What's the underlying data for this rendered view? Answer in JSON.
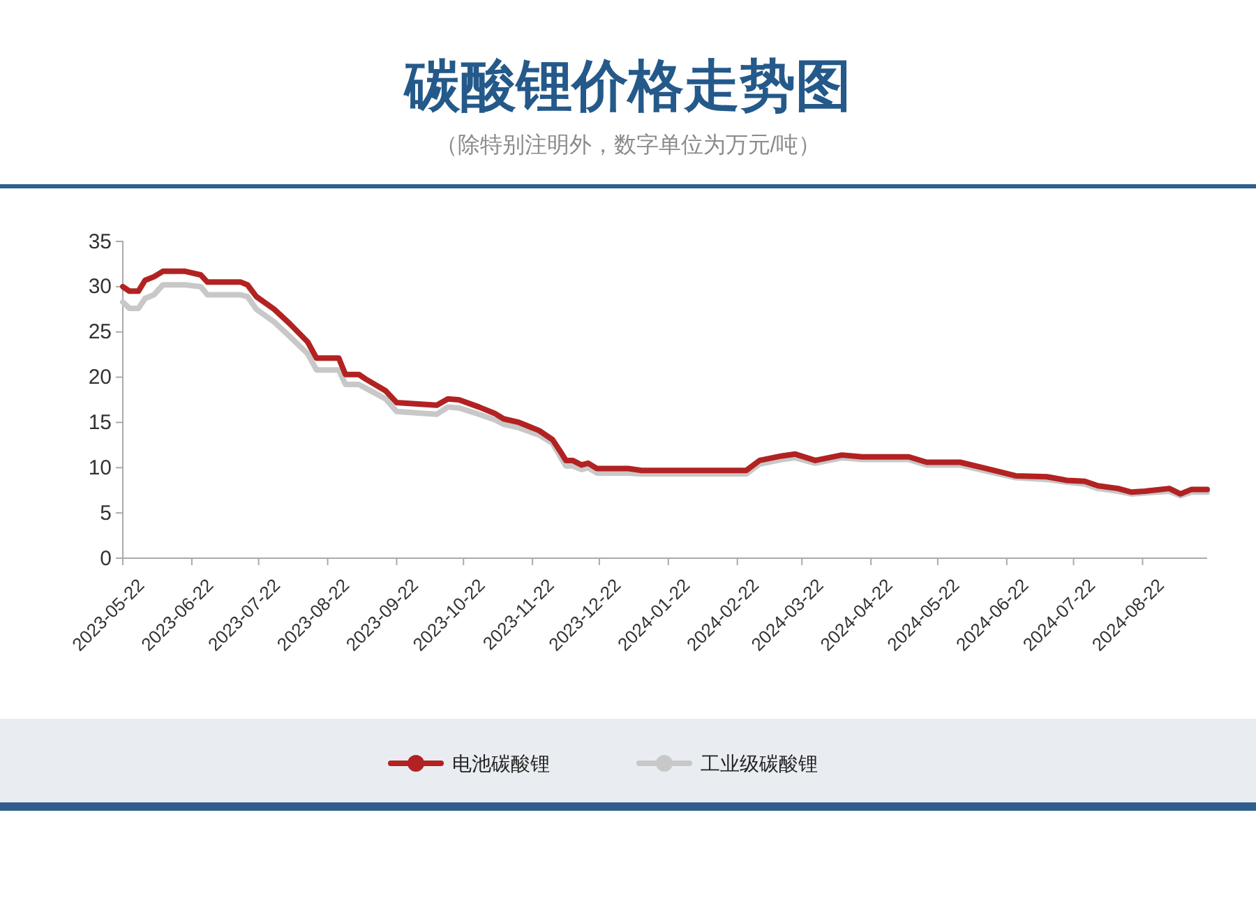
{
  "chart_data": {
    "type": "line",
    "title": "碳酸锂价格走势图",
    "subtitle": "（除特别注明外，数字单位为万元/吨）",
    "x": [
      "2023-05-22",
      "2023-05-25",
      "2023-05-29",
      "2023-06-01",
      "2023-06-05",
      "2023-06-09",
      "2023-06-19",
      "2023-06-26",
      "2023-06-29",
      "2023-07-14",
      "2023-07-17",
      "2023-07-21",
      "2023-07-29",
      "2023-08-05",
      "2023-08-13",
      "2023-08-17",
      "2023-08-27",
      "2023-08-30",
      "2023-09-05",
      "2023-09-08",
      "2023-09-17",
      "2023-09-22",
      "2023-10-10",
      "2023-10-15",
      "2023-10-20",
      "2023-10-29",
      "2023-11-05",
      "2023-11-09",
      "2023-11-16",
      "2023-11-25",
      "2023-12-01",
      "2023-12-05",
      "2023-12-07",
      "2023-12-10",
      "2023-12-14",
      "2023-12-17",
      "2023-12-21",
      "2024-01-04",
      "2024-01-10",
      "2024-02-26",
      "2024-03-03",
      "2024-03-13",
      "2024-03-19",
      "2024-03-28",
      "2024-04-09",
      "2024-04-18",
      "2024-05-09",
      "2024-05-17",
      "2024-06-01",
      "2024-06-13",
      "2024-06-26",
      "2024-07-10",
      "2024-07-19",
      "2024-07-27",
      "2024-08-02",
      "2024-08-11",
      "2024-08-17",
      "2024-08-23",
      "2024-09-03",
      "2024-09-08",
      "2024-09-13",
      "2024-09-20"
    ],
    "series": [
      {
        "name": "电池碳酸锂",
        "color": "#b22222",
        "values": [
          30.0,
          29.5,
          29.5,
          30.7,
          31.1,
          31.7,
          31.7,
          31.3,
          30.5,
          30.5,
          30.2,
          28.9,
          27.5,
          25.9,
          23.9,
          22.1,
          22.1,
          20.3,
          20.3,
          19.8,
          18.5,
          17.2,
          16.9,
          17.6,
          17.5,
          16.7,
          16.0,
          15.4,
          15.0,
          14.1,
          13.1,
          11.6,
          10.8,
          10.8,
          10.3,
          10.5,
          9.9,
          9.9,
          9.7,
          9.7,
          10.8,
          11.3,
          11.5,
          10.8,
          11.4,
          11.2,
          11.2,
          10.6,
          10.6,
          9.9,
          9.1,
          9.0,
          8.6,
          8.5,
          8.0,
          7.7,
          7.3,
          7.4,
          7.7,
          7.1,
          7.6,
          7.6
        ]
      },
      {
        "name": "工业级碳酸锂",
        "color": "#c8c8c8",
        "values": [
          28.3,
          27.6,
          27.6,
          28.7,
          29.1,
          30.2,
          30.2,
          30.0,
          29.1,
          29.1,
          28.9,
          27.5,
          26.1,
          24.5,
          22.6,
          20.8,
          20.8,
          19.2,
          19.2,
          18.8,
          17.6,
          16.2,
          15.9,
          16.7,
          16.6,
          15.9,
          15.3,
          14.8,
          14.4,
          13.6,
          12.7,
          11.0,
          10.2,
          10.2,
          9.8,
          10.0,
          9.4,
          9.4,
          9.3,
          9.3,
          10.4,
          10.9,
          11.1,
          10.5,
          11.1,
          10.9,
          10.9,
          10.3,
          10.3,
          9.6,
          8.9,
          8.7,
          8.4,
          8.2,
          7.7,
          7.4,
          7.1,
          7.2,
          7.4,
          6.9,
          7.3,
          7.3
        ]
      }
    ],
    "xlim": [
      "2023-05-22",
      "2024-09-20"
    ],
    "xticks": [
      "2023-05-22",
      "2023-06-22",
      "2023-07-22",
      "2023-08-22",
      "2023-09-22",
      "2023-10-22",
      "2023-11-22",
      "2023-12-22",
      "2024-01-22",
      "2024-02-22",
      "2024-03-22",
      "2024-04-22",
      "2024-05-22",
      "2024-06-22",
      "2024-07-22",
      "2024-08-22"
    ],
    "ylim": [
      0,
      35
    ],
    "yticks": [
      0,
      5,
      10,
      15,
      20,
      25,
      30,
      35
    ],
    "grid": false,
    "legend": "bottom",
    "marker": "none",
    "line_style": "solid"
  }
}
